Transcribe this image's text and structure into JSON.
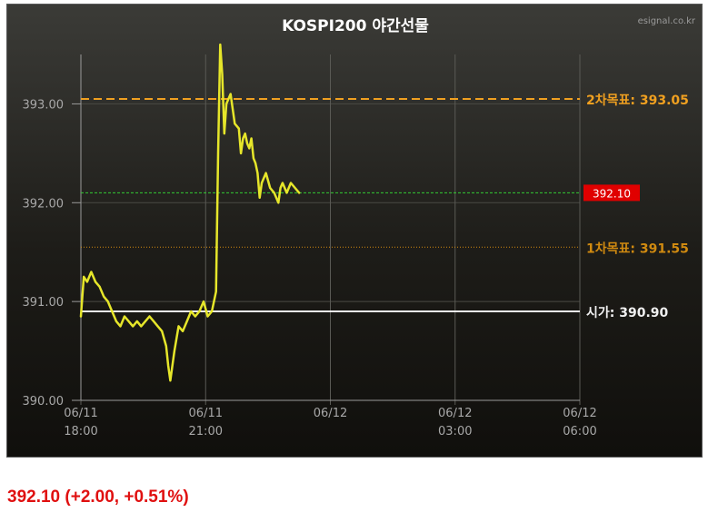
{
  "chart_data": {
    "type": "line",
    "title": "KOSPI200 야간선물",
    "source": "esignal.co.kr",
    "xlabel": "",
    "ylabel": "",
    "ylim": [
      390.0,
      393.5
    ],
    "y_ticks": [
      "393.00",
      "392.00",
      "391.00",
      "390.00"
    ],
    "y_tick_values": [
      393.0,
      392.0,
      391.0,
      390.0
    ],
    "x_ticks": [
      {
        "date": "06/11",
        "time": "18:00"
      },
      {
        "date": "06/11",
        "time": "21:00"
      },
      {
        "date": "06/12",
        "time": ""
      },
      {
        "date": "06/12",
        "time": "03:00"
      },
      {
        "date": "06/12",
        "time": "06:00"
      }
    ],
    "x_tick_hours": [
      0,
      3,
      6,
      9,
      12
    ],
    "x_range_hours": [
      0,
      12
    ],
    "grid": true,
    "series": [
      {
        "color": "#e6e62a",
        "x_hours": [
          0.0,
          0.07,
          0.15,
          0.25,
          0.35,
          0.45,
          0.55,
          0.65,
          0.75,
          0.85,
          0.95,
          1.05,
          1.15,
          1.25,
          1.35,
          1.45,
          1.55,
          1.65,
          1.75,
          1.85,
          1.95,
          2.05,
          2.1,
          2.15,
          2.25,
          2.35,
          2.45,
          2.55,
          2.65,
          2.75,
          2.85,
          2.95,
          3.05,
          3.15,
          3.25,
          3.3,
          3.35,
          3.4,
          3.45,
          3.5,
          3.6,
          3.7,
          3.8,
          3.85,
          3.9,
          3.95,
          4.0,
          4.05,
          4.1,
          4.15,
          4.2,
          4.25,
          4.3,
          4.35,
          4.45,
          4.55,
          4.65,
          4.75,
          4.8,
          4.85,
          4.95,
          5.05,
          5.15,
          5.25
        ],
        "values": [
          390.85,
          391.25,
          391.2,
          391.3,
          391.2,
          391.15,
          391.05,
          391.0,
          390.9,
          390.8,
          390.75,
          390.85,
          390.8,
          390.75,
          390.8,
          390.75,
          390.8,
          390.85,
          390.8,
          390.75,
          390.7,
          390.55,
          390.35,
          390.2,
          390.5,
          390.75,
          390.7,
          390.8,
          390.9,
          390.85,
          390.9,
          391.0,
          390.85,
          390.9,
          391.1,
          392.5,
          393.6,
          393.3,
          392.7,
          393.0,
          393.1,
          392.8,
          392.75,
          392.5,
          392.65,
          392.7,
          392.6,
          392.55,
          392.65,
          392.45,
          392.4,
          392.3,
          392.05,
          392.2,
          392.3,
          392.15,
          392.1,
          392.0,
          392.15,
          392.2,
          392.1,
          392.2,
          392.15,
          392.1
        ]
      }
    ],
    "reference_lines": [
      {
        "label": "2차목표: 393.05",
        "value": 393.05,
        "color": "#f0a020",
        "style": "dashed"
      },
      {
        "label": "392.10",
        "value": 392.1,
        "color": "#33cc33",
        "style": "dashed",
        "badge": true,
        "badge_color": "#e00000"
      },
      {
        "label": "1차목표: 391.55",
        "value": 391.55,
        "color": "#d08a10",
        "style": "dotted"
      },
      {
        "label": "시가: 390.90",
        "value": 390.9,
        "color": "#f0f0f0",
        "style": "solid"
      }
    ]
  },
  "summary": {
    "price_change": "392.10 (+2.00, +0.51%)"
  }
}
